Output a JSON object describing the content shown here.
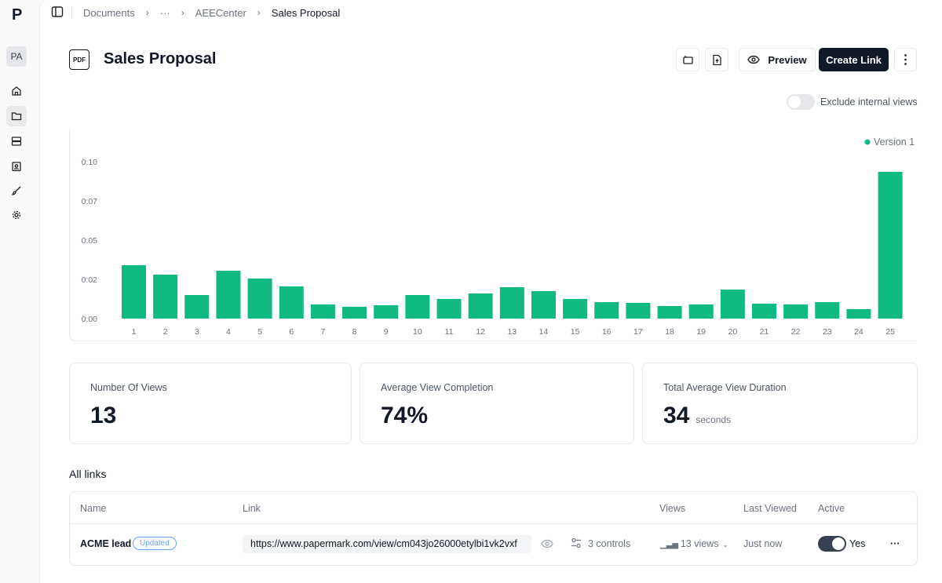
{
  "sidebar": {
    "logo": "P",
    "avatar": "PA",
    "items": [
      "home",
      "documents",
      "datarooms",
      "visitors",
      "branding",
      "settings"
    ]
  },
  "breadcrumb": [
    "Documents",
    "···",
    "AEECenter",
    "Sales Proposal"
  ],
  "header": {
    "file_badge": "PDF",
    "title": "Sales Proposal",
    "preview": "Preview",
    "create_link": "Create Link"
  },
  "exclude_toggle": {
    "label": "Exclude internal views",
    "on": false
  },
  "chart_data": {
    "type": "bar",
    "categories": [
      "1",
      "2",
      "3",
      "4",
      "5",
      "6",
      "7",
      "8",
      "9",
      "10",
      "11",
      "12",
      "13",
      "14",
      "15",
      "16",
      "17",
      "18",
      "19",
      "20",
      "21",
      "22",
      "23",
      "24",
      "25"
    ],
    "series": [
      {
        "name": "Version 1",
        "values": [
          3.4,
          2.8,
          1.5,
          3.05,
          2.55,
          2.05,
          0.9,
          0.75,
          0.85,
          1.5,
          1.25,
          1.6,
          2.0,
          1.75,
          1.25,
          1.05,
          1.0,
          0.8,
          0.9,
          1.85,
          0.95,
          0.9,
          1.05,
          0.6,
          9.35
        ]
      }
    ],
    "yticks": [
      "0:00",
      "0:02",
      "0:05",
      "0:07",
      "0:10"
    ],
    "ylim": [
      0,
      10
    ],
    "ylabel": "",
    "xlabel": "",
    "legend": "top-right",
    "color": "#10b981"
  },
  "stats": [
    {
      "label": "Number Of Views",
      "value": "13"
    },
    {
      "label": "Average View Completion",
      "value": "74%"
    },
    {
      "label": "Total Average View Duration",
      "value": "34",
      "unit": "seconds"
    }
  ],
  "links": {
    "title": "All links",
    "columns": [
      "Name",
      "Link",
      "Views",
      "Last Viewed",
      "Active"
    ],
    "rows": [
      {
        "name": "ACME lead",
        "badge": "Updated",
        "url": "https://www.papermark.com/view/cm043jo26000etylbi1vk2vxf",
        "controls": "3 controls",
        "views": "13 views",
        "last_viewed": "Just now",
        "active": "Yes"
      }
    ]
  }
}
